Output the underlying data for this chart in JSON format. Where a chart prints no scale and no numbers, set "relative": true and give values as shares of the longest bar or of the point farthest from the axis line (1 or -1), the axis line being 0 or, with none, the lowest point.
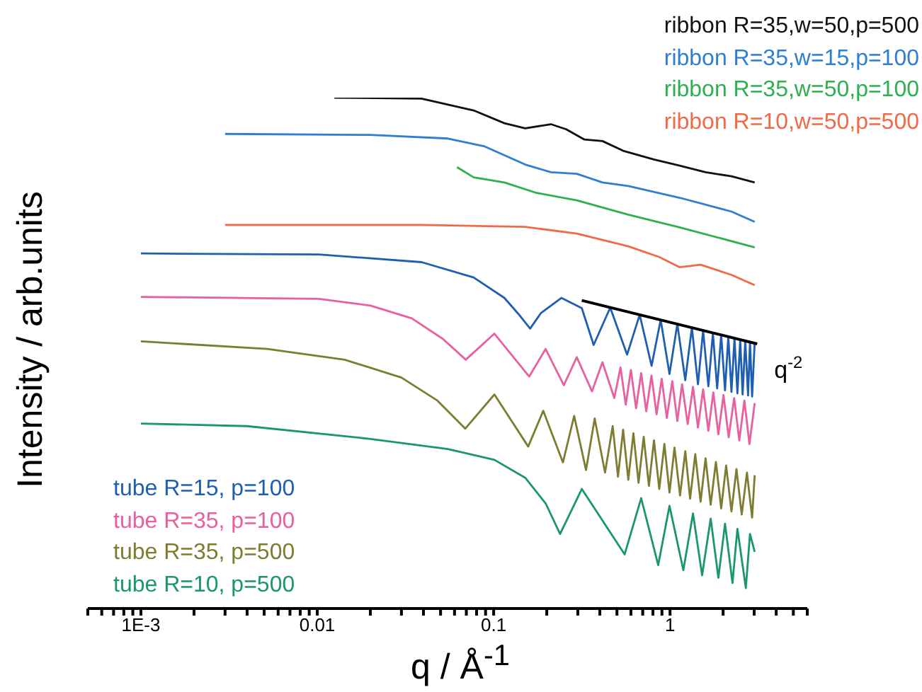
{
  "chart_data": {
    "type": "line",
    "xlabel": "q / Å$^{-1}$",
    "ylabel": "Intensity / arb.units",
    "relative": true,
    "log": "x",
    "legend": "top right",
    "xlim": [
      0.0005,
      6
    ],
    "xticks": [
      {
        "value": 0.0005,
        "label": null
      },
      {
        "value": 0.0006,
        "label": null
      },
      {
        "value": 0.0007,
        "label": null
      },
      {
        "value": 0.0008,
        "label": null
      },
      {
        "value": 0.0009,
        "label": null
      },
      {
        "value": 0.001,
        "label": "1E-3"
      },
      {
        "value": 0.002,
        "label": null
      },
      {
        "value": 0.003,
        "label": null
      },
      {
        "value": 0.004,
        "label": null
      },
      {
        "value": 0.005,
        "label": null
      },
      {
        "value": 0.006,
        "label": null
      },
      {
        "value": 0.007,
        "label": null
      },
      {
        "value": 0.008,
        "label": null
      },
      {
        "value": 0.009,
        "label": null
      },
      0.01,
      {
        "value": 0.02,
        "label": null
      },
      {
        "value": 0.03,
        "label": null
      },
      {
        "value": 0.04,
        "label": null
      },
      {
        "value": 0.05,
        "label": null
      },
      {
        "value": 0.06,
        "label": null
      },
      {
        "value": 0.07,
        "label": null
      },
      {
        "value": 0.08,
        "label": null
      },
      {
        "value": 0.09,
        "label": null
      },
      0.1,
      {
        "value": 0.2,
        "label": null
      },
      {
        "value": 0.3,
        "label": null
      },
      {
        "value": 0.4,
        "label": null
      },
      {
        "value": 0.5,
        "label": null
      },
      {
        "value": 0.6,
        "label": null
      },
      {
        "value": 0.7,
        "label": null
      },
      {
        "value": 0.8,
        "label": null
      },
      {
        "value": 0.9,
        "label": null
      },
      1,
      {
        "value": 2,
        "label": null
      },
      {
        "value": 3,
        "label": null
      },
      {
        "value": 4,
        "label": null
      },
      {
        "value": 5,
        "label": null
      },
      {
        "value": 6,
        "label": null
      }
    ],
    "series": [
      {
        "name": "ribbon R=35,w=50,p=500",
        "color": "#111111",
        "x": [
          0.0125,
          0.039,
          0.077,
          0.115,
          0.151,
          0.211,
          0.258,
          0.327,
          0.414,
          0.542,
          0.81,
          1.135,
          1.59,
          2.23,
          3.02
        ],
        "values": [
          1.0,
          0.998,
          0.975,
          0.95,
          0.94,
          0.948,
          0.938,
          0.918,
          0.915,
          0.896,
          0.879,
          0.867,
          0.854,
          0.846,
          0.834
        ]
      },
      {
        "name": "ribbon R=35,w=15,p=100",
        "color": "#2f7fd0",
        "x": [
          0.003,
          0.02,
          0.055,
          0.088,
          0.151,
          0.211,
          0.296,
          0.414,
          0.58,
          1.135,
          2.23,
          3.02
        ],
        "values": [
          0.929,
          0.927,
          0.92,
          0.905,
          0.869,
          0.854,
          0.851,
          0.834,
          0.827,
          0.804,
          0.777,
          0.757
        ]
      },
      {
        "name": "ribbon R=35,w=50,p=100",
        "color": "#2fb050",
        "x": [
          0.062,
          0.077,
          0.115,
          0.173,
          0.296,
          0.58,
          1.135,
          3.02
        ],
        "values": [
          0.864,
          0.844,
          0.834,
          0.814,
          0.799,
          0.771,
          0.746,
          0.707
        ]
      },
      {
        "name": "ribbon R=10,w=50,p=500",
        "color": "#f06a4a",
        "x": [
          0.003,
          0.039,
          0.151,
          0.296,
          0.58,
          0.869,
          1.135,
          1.49,
          2.23,
          3.02
        ],
        "values": [
          0.751,
          0.751,
          0.747,
          0.734,
          0.709,
          0.688,
          0.668,
          0.673,
          0.653,
          0.633
        ]
      },
      {
        "name": "tube R=15, p=100",
        "color": "#1f5fb0",
        "x": [
          0.001,
          0.0102,
          0.039,
          0.077,
          0.115,
          0.141,
          0.161,
          0.185,
          0.242,
          0.316,
          0.369,
          0.458,
          0.571,
          0.673,
          0.786,
          0.885,
          0.993,
          1.1,
          1.22,
          1.33,
          1.44,
          1.54,
          1.65,
          1.75,
          1.85,
          1.95,
          2.05,
          2.14,
          2.23,
          2.32,
          2.41,
          2.5,
          2.58,
          2.67,
          2.77,
          2.84,
          2.92,
          3.02
        ],
        "values": [
          0.695,
          0.693,
          0.678,
          0.648,
          0.608,
          0.573,
          0.548,
          0.578,
          0.608,
          0.588,
          0.516,
          0.589,
          0.497,
          0.575,
          0.475,
          0.565,
          0.459,
          0.557,
          0.447,
          0.55,
          0.439,
          0.544,
          0.435,
          0.539,
          0.431,
          0.536,
          0.427,
          0.532,
          0.424,
          0.529,
          0.421,
          0.526,
          0.419,
          0.524,
          0.417,
          0.522,
          0.415,
          0.521
        ]
      },
      {
        "name": "tube R=35, p=100",
        "color": "#e8609f",
        "x": [
          0.001,
          0.0102,
          0.02,
          0.0343,
          0.0514,
          0.0695,
          0.101,
          0.159,
          0.197,
          0.25,
          0.296,
          0.361,
          0.414,
          0.483,
          0.524,
          0.561,
          0.6,
          0.642,
          0.686,
          0.733,
          0.785,
          0.839,
          0.897,
          0.959,
          1.03,
          1.1,
          1.17,
          1.26,
          1.35,
          1.44,
          1.54,
          1.65,
          1.76,
          1.88,
          2.01,
          2.15,
          2.31,
          2.47,
          2.64,
          2.82,
          3.02
        ],
        "values": [
          0.61,
          0.606,
          0.593,
          0.568,
          0.528,
          0.487,
          0.538,
          0.454,
          0.508,
          0.437,
          0.492,
          0.425,
          0.482,
          0.412,
          0.472,
          0.399,
          0.467,
          0.392,
          0.461,
          0.386,
          0.456,
          0.38,
          0.45,
          0.373,
          0.445,
          0.367,
          0.439,
          0.361,
          0.434,
          0.354,
          0.429,
          0.348,
          0.423,
          0.341,
          0.418,
          0.335,
          0.412,
          0.329,
          0.407,
          0.322,
          0.402
        ]
      },
      {
        "name": "tube R=35, p=500",
        "color": "#7d7d32",
        "x": [
          0.001,
          0.0052,
          0.0143,
          0.03,
          0.048,
          0.069,
          0.101,
          0.157,
          0.191,
          0.247,
          0.286,
          0.334,
          0.374,
          0.428,
          0.473,
          0.507,
          0.542,
          0.58,
          0.62,
          0.663,
          0.709,
          0.759,
          0.811,
          0.869,
          0.929,
          0.993,
          1.06,
          1.14,
          1.22,
          1.3,
          1.39,
          1.49,
          1.59,
          1.7,
          1.82,
          1.95,
          2.08,
          2.23,
          2.38,
          2.55,
          2.73,
          2.92,
          3.02
        ],
        "values": [
          0.523,
          0.508,
          0.487,
          0.452,
          0.407,
          0.352,
          0.419,
          0.317,
          0.387,
          0.286,
          0.377,
          0.271,
          0.372,
          0.266,
          0.357,
          0.258,
          0.35,
          0.252,
          0.343,
          0.246,
          0.336,
          0.24,
          0.329,
          0.234,
          0.322,
          0.227,
          0.315,
          0.221,
          0.308,
          0.215,
          0.302,
          0.209,
          0.294,
          0.203,
          0.287,
          0.196,
          0.28,
          0.19,
          0.273,
          0.184,
          0.266,
          0.178,
          0.261
        ]
      },
      {
        "name": "tube R=10, p=500",
        "color": "#1a9670",
        "x": [
          0.001,
          0.004,
          0.02,
          0.055,
          0.101,
          0.151,
          0.197,
          0.238,
          0.316,
          0.553,
          0.686,
          0.857,
          0.993,
          1.19,
          1.35,
          1.52,
          1.7,
          1.88,
          2.05,
          2.26,
          2.41,
          2.69,
          2.84,
          3.02
        ],
        "values": [
          0.362,
          0.357,
          0.332,
          0.312,
          0.291,
          0.256,
          0.206,
          0.146,
          0.234,
          0.106,
          0.216,
          0.085,
          0.201,
          0.075,
          0.186,
          0.065,
          0.176,
          0.06,
          0.166,
          0.05,
          0.156,
          0.04,
          0.146,
          0.111
        ]
      },
      {
        "color": "#000000",
        "x": [
          0.316,
          3.12
        ],
        "values": [
          0.603,
          0.518
        ]
      }
    ],
    "annotations": [
      {
        "text": "q$^{-2}$",
        "x": 3.12,
        "y": 0.518
      }
    ]
  }
}
